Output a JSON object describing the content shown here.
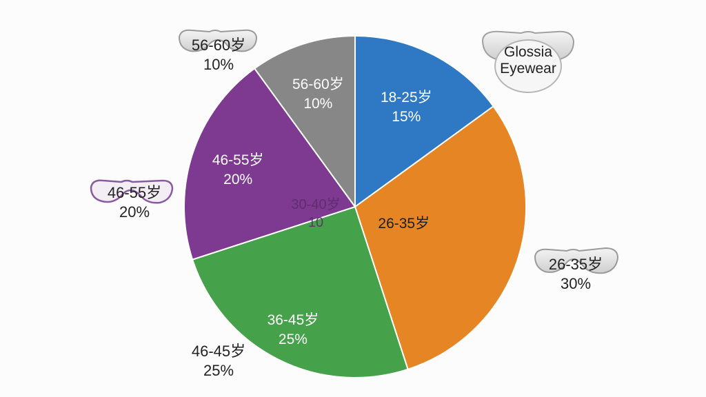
{
  "brand": {
    "line1": "Glossia",
    "line2": "Eyewear"
  },
  "chart_data": {
    "type": "pie",
    "slices": [
      {
        "label": "18-25岁",
        "percent_text": "15%",
        "value": 15,
        "color": "#2f78c3"
      },
      {
        "label": "26-35岁",
        "percent_text": "",
        "value": 30,
        "color": "#e68524"
      },
      {
        "label": "36-45岁",
        "percent_text": "25%",
        "value": 25,
        "color": "#46a24a"
      },
      {
        "label": "46-55岁",
        "percent_text": "20%",
        "value": 20,
        "color": "#7e3a91"
      },
      {
        "label": "56-60岁",
        "percent_text": "10%",
        "value": 10,
        "color": "#878787"
      }
    ],
    "outside_labels": [
      {
        "label": "56-60岁",
        "value": "10%"
      },
      {
        "label": "46-55岁",
        "value": "20%"
      },
      {
        "label": "26-35岁",
        "value": "30%"
      },
      {
        "label": "46-45岁",
        "value": "25%"
      }
    ],
    "center_overlap_text": {
      "line1": "30-40岁",
      "line2": "10"
    }
  }
}
